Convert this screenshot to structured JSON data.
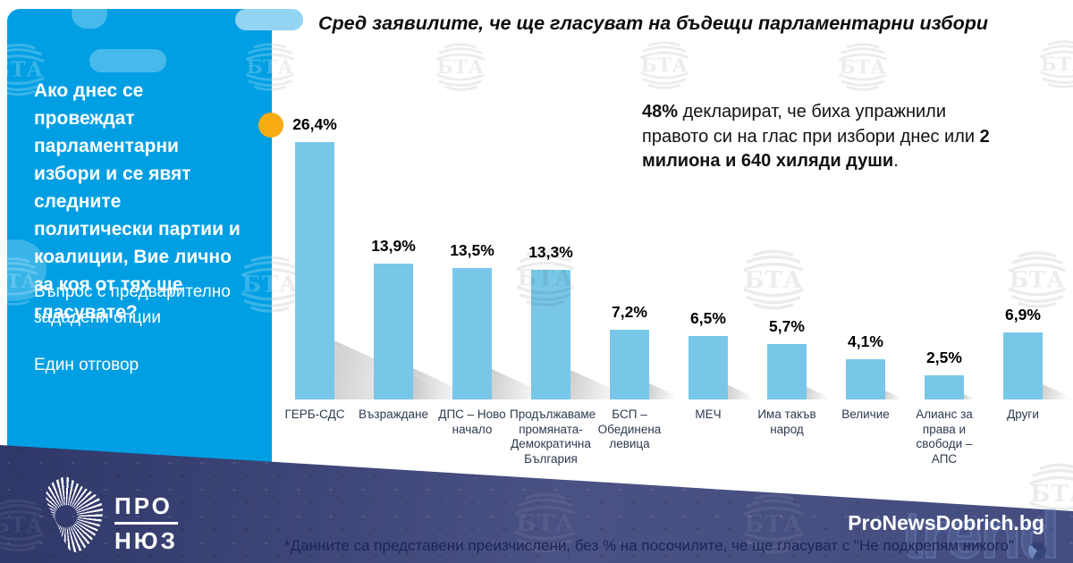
{
  "sidebar": {
    "question": "Ако днес се провеждат парламентарни избори и се явят следните политически партии и коалиции, Вие лично за коя от тях ще гласувате?",
    "note1": "Въпрос с предварително зададени опции",
    "note2": "Един отговор"
  },
  "header": {
    "title": "Сред заявилите, че ще гласуват на бъдещи парламентарни избори"
  },
  "summary": {
    "segments": [
      {
        "text": "48%",
        "bold": true
      },
      {
        "text": " декларират, че биха упражнили правото си на глас при избори днес или ",
        "bold": false
      },
      {
        "text": "2 милиона и 640 хиляди души",
        "bold": true
      },
      {
        "text": ".",
        "bold": false
      }
    ]
  },
  "chart_data": {
    "type": "bar",
    "title": "Сред заявилите, че ще гласуват на бъдещи парламентарни избори",
    "categories": [
      "ГЕРБ-СДС",
      "Възраждане",
      "ДПС – Ново начало",
      "Продължаваме промяната-Демократична България",
      "БСП – Обединена левица",
      "МЕЧ",
      "Има такъв народ",
      "Величие",
      "Алианс за права и свободи – АПС",
      "Други"
    ],
    "values": [
      26.4,
      13.9,
      13.5,
      13.3,
      7.2,
      6.5,
      5.7,
      4.1,
      2.5,
      6.9
    ],
    "value_labels": [
      "26,4%",
      "13,9%",
      "13,5%",
      "13,3%",
      "7,2%",
      "6,5%",
      "5,7%",
      "4,1%",
      "2,5%",
      "6,9%"
    ],
    "xlabel": "",
    "ylabel": "",
    "ylim": [
      0,
      29
    ],
    "grid": false,
    "legend": "none",
    "bar_color": "#79C7E8"
  },
  "footer": {
    "footnote": "*Данните са представени преизчислени, без % на посочилите, че ще гласуват с \"Не подкрепям никого\"",
    "brand": "ProNewsDobrich.bg",
    "logo_line1": "ПРО",
    "logo_line2": "НЮЗ",
    "trend_watermark": "trend"
  },
  "watermark": {
    "text": "БТА"
  },
  "colors": {
    "sidebar_blue": "#009FE3",
    "bar_blue": "#79C7E8",
    "accent_yellow": "#F8AC12",
    "band_navy": "#2B3464",
    "footnote_navy": "#1D2556",
    "category_label": "#2C3A4F"
  }
}
